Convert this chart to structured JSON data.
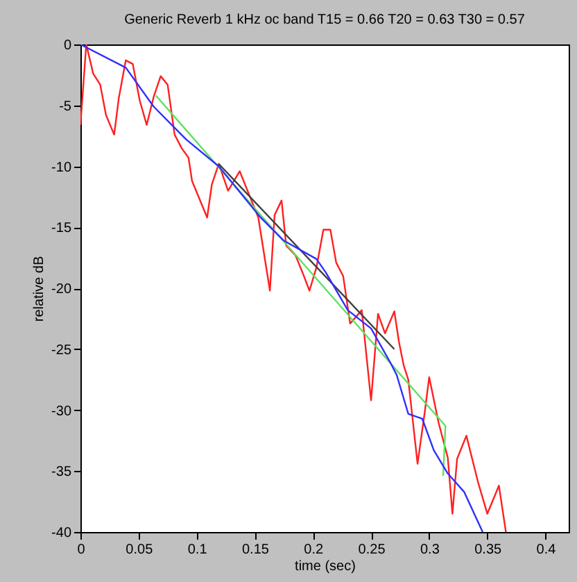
{
  "chart_data": {
    "type": "line",
    "title": "Generic Reverb 1 kHz oc band  T15 = 0.66 T20 = 0.63 T30 = 0.57",
    "xlabel": "time (sec)",
    "ylabel": "relative dB",
    "xlim": [
      0,
      0.42
    ],
    "ylim": [
      -40,
      0
    ],
    "xticks": [
      0,
      0.05,
      0.1,
      0.15,
      0.2,
      0.25,
      0.3,
      0.35,
      0.4
    ],
    "yticks": [
      -40,
      -35,
      -30,
      -25,
      -20,
      -15,
      -10,
      -5,
      0
    ],
    "grid": false,
    "legend": false,
    "series": [
      {
        "color": "#ff2020",
        "x": [
          0,
          0.005,
          0.011,
          0.017,
          0.022,
          0.029,
          0.033,
          0.039,
          0.045,
          0.051,
          0.057,
          0.063,
          0.069,
          0.075,
          0.081,
          0.087,
          0.093,
          0.096,
          0.109,
          0.113,
          0.119,
          0.127,
          0.137,
          0.145,
          0.153,
          0.163,
          0.167,
          0.173,
          0.177,
          0.185,
          0.191,
          0.197,
          0.203,
          0.209,
          0.215,
          0.22,
          0.226,
          0.232,
          0.242,
          0.25,
          0.256,
          0.262,
          0.27,
          0.274,
          0.278,
          0.282,
          0.29,
          0.296,
          0.3,
          0.308,
          0.316,
          0.32,
          0.324,
          0.332,
          0.342,
          0.35,
          0.36,
          0.366
        ],
        "values": [
          -6.6,
          0,
          -2.4,
          -3.3,
          -5.8,
          -7.4,
          -4.4,
          -1.3,
          -1.6,
          -4.6,
          -6.6,
          -4.3,
          -2.6,
          -3.3,
          -7.4,
          -8.5,
          -9.3,
          -11.2,
          -14.2,
          -11.5,
          -9.8,
          -12,
          -10.4,
          -12.3,
          -14.2,
          -20.2,
          -14,
          -12.8,
          -16.5,
          -17.3,
          -18.7,
          -20.2,
          -18.3,
          -15.2,
          -15.2,
          -17.9,
          -19,
          -22.9,
          -21.8,
          -29.2,
          -22.1,
          -23.7,
          -21.9,
          -24.4,
          -26.3,
          -27.5,
          -34.4,
          -30.3,
          -27.3,
          -31,
          -33.9,
          -38.5,
          -34,
          -32.1,
          -35.9,
          -38.5,
          -36.2,
          -40
        ]
      },
      {
        "color": "#60e060",
        "x": [
          0.065,
          0.314,
          0.312
        ],
        "values": [
          -4.2,
          -31.3,
          -35.4
        ]
      },
      {
        "color": "#404040",
        "x": [
          0.119,
          0.27
        ],
        "values": [
          -9.8,
          -25
        ]
      },
      {
        "color": "#3030ff",
        "x": [
          0,
          0.039,
          0.063,
          0.091,
          0.119,
          0.155,
          0.175,
          0.203,
          0.211,
          0.23,
          0.25,
          0.266,
          0.272,
          0.282,
          0.294,
          0.304,
          0.316,
          0.33,
          0.346
        ],
        "values": [
          0,
          -1.9,
          -5.1,
          -7.8,
          -10,
          -14.2,
          -16.1,
          -17.6,
          -18.7,
          -21.8,
          -23.3,
          -26,
          -27.1,
          -30.3,
          -30.7,
          -33.3,
          -35.2,
          -36.7,
          -40
        ]
      }
    ]
  }
}
